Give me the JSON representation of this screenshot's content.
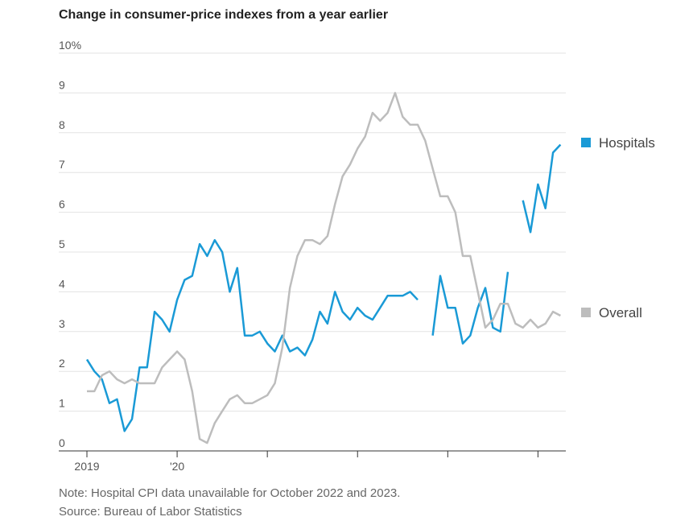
{
  "chart_data": {
    "type": "line",
    "title": "Change in consumer-price indexes from a year earlier",
    "note": "Note: Hospital CPI data unavailable for October 2022 and 2023.",
    "source": "Source: Bureau of Labor Statistics",
    "categories": [
      "2019",
      null,
      null,
      null,
      null,
      null,
      null,
      null,
      null,
      null,
      null,
      null,
      "'20",
      null,
      null,
      null,
      null,
      null,
      null,
      null,
      null,
      null,
      null,
      null,
      null,
      null,
      null,
      null,
      null,
      null,
      null,
      null,
      null,
      null,
      null,
      null,
      null,
      null,
      null,
      null,
      null,
      null,
      null,
      null,
      null,
      null,
      null,
      null,
      null,
      null,
      null,
      null,
      null,
      null,
      null,
      null,
      null,
      null,
      null,
      null,
      null,
      null,
      null,
      null
    ],
    "series": [
      {
        "name": "Hospitals",
        "color": "#1a9ad6",
        "values": [
          2.3,
          2.0,
          1.8,
          1.2,
          1.3,
          0.5,
          0.8,
          2.1,
          2.1,
          3.5,
          3.3,
          3.0,
          3.8,
          4.3,
          4.4,
          5.2,
          4.9,
          5.3,
          5.0,
          4.0,
          4.6,
          2.9,
          2.9,
          3.0,
          2.7,
          2.5,
          2.9,
          2.5,
          2.6,
          2.4,
          2.8,
          3.5,
          3.2,
          4.0,
          3.5,
          3.3,
          3.6,
          3.4,
          3.3,
          3.6,
          3.9,
          3.9,
          3.9,
          4.0,
          3.8,
          null,
          2.9,
          4.4,
          3.6,
          3.6,
          2.7,
          2.9,
          3.6,
          4.1,
          3.1,
          3.0,
          4.5,
          null,
          6.3,
          5.5,
          6.7,
          6.1,
          7.5,
          7.7
        ]
      },
      {
        "name": "Overall",
        "color": "#bdbdbd",
        "values": [
          1.5,
          1.5,
          1.9,
          2.0,
          1.8,
          1.7,
          1.8,
          1.7,
          1.7,
          1.7,
          2.1,
          2.3,
          2.5,
          2.3,
          1.5,
          0.3,
          0.2,
          0.7,
          1.0,
          1.3,
          1.4,
          1.2,
          1.2,
          1.3,
          1.4,
          1.7,
          2.6,
          4.1,
          4.9,
          5.3,
          5.3,
          5.2,
          5.4,
          6.2,
          6.9,
          7.2,
          7.6,
          7.9,
          8.5,
          8.3,
          8.5,
          9.0,
          8.4,
          8.2,
          8.2,
          7.8,
          7.1,
          6.4,
          6.4,
          6.0,
          4.9,
          4.9,
          4.0,
          3.1,
          3.3,
          3.7,
          3.7,
          3.2,
          3.1,
          3.3,
          3.1,
          3.2,
          3.5,
          3.4
        ]
      }
    ],
    "ylim": [
      0,
      10
    ],
    "yticks": [
      0,
      1,
      2,
      3,
      4,
      5,
      6,
      7,
      8,
      9,
      {
        "value": 10,
        "label": "10%"
      }
    ],
    "grid": true
  }
}
